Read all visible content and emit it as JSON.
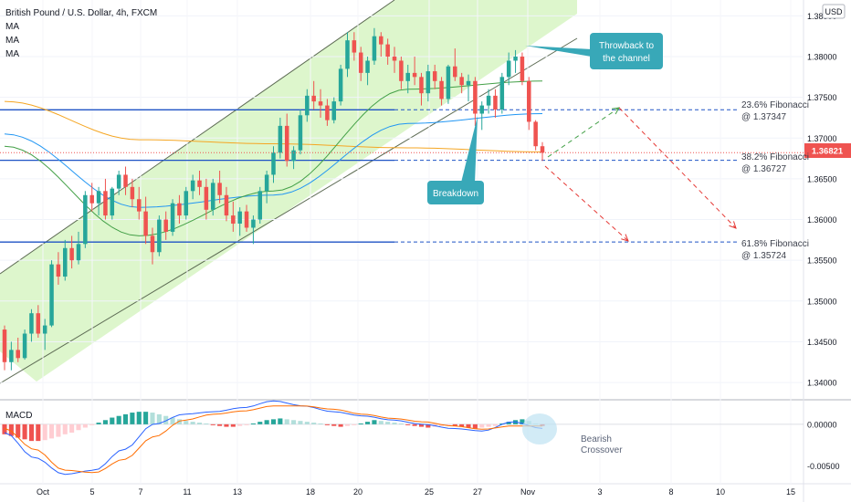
{
  "header": {
    "symbol_title": "British Pound / U.S. Dollar, 4h, FXCM",
    "indicators": [
      "MA",
      "MA",
      "MA"
    ],
    "currency_badge": "USD"
  },
  "price_axis": {
    "labels": [
      "1.38500",
      "1.38000",
      "1.37500",
      "1.37000",
      "1.36500",
      "1.36000",
      "1.35500",
      "1.35000",
      "1.34500",
      "1.34000"
    ],
    "values": [
      1.385,
      1.38,
      1.375,
      1.37,
      1.365,
      1.36,
      1.355,
      1.35,
      1.345,
      1.34
    ],
    "last_price": "1.36821",
    "last_price_color": "#ef5350"
  },
  "macd_axis": {
    "labels": [
      "0.00000",
      "-0.00500"
    ],
    "values": [
      0,
      -0.005
    ]
  },
  "time_axis": {
    "labels": [
      "Oct",
      "5",
      "7",
      "11",
      "13",
      "18",
      "20",
      "25",
      "27",
      "Nov",
      "3",
      "8",
      "10",
      "15"
    ]
  },
  "annotations": {
    "throwback": "Throwback to the channel",
    "breakdown": "Breakdown",
    "fib_236_name": "23.6% Fibonacci",
    "fib_236_value": "@ 1.37347",
    "fib_382_name": "38.2% Fibonacci",
    "fib_382_value": "@ 1.36727",
    "fib_618_name": "61.8% Fibonacci",
    "fib_618_value": "@ 1.35724",
    "bearish_crossover_line1": "Bearish",
    "bearish_crossover_line2": "Crossover"
  },
  "macd_panel": {
    "label": "MACD"
  },
  "colors": {
    "bull": "#26a69a",
    "bear": "#ef5350",
    "channel_fill": "#d9f5c7",
    "fib_line": "#1e53c5",
    "ma_orange": "#f5a623",
    "ma_blue": "#2196f3",
    "ma_green": "#43a047",
    "callout": "#38a8b8",
    "projection_green": "#43a047",
    "projection_red": "#e53935"
  },
  "chart_data": {
    "type": "candlestick",
    "title": "British Pound / U.S. Dollar, 4h, FXCM",
    "ylim": [
      1.339,
      1.3865
    ],
    "fibonacci_levels": [
      {
        "label": "23.6% Fibonacci",
        "value": 1.37347
      },
      {
        "label": "38.2% Fibonacci",
        "value": 1.36727
      },
      {
        "label": "61.8% Fibonacci",
        "value": 1.35724
      }
    ],
    "last_price": 1.36821,
    "ohlc": [
      [
        1.3465,
        1.347,
        1.3415,
        1.3425
      ],
      [
        1.3425,
        1.345,
        1.3415,
        1.344
      ],
      [
        1.344,
        1.3455,
        1.3425,
        1.343
      ],
      [
        1.343,
        1.3465,
        1.3428,
        1.346
      ],
      [
        1.346,
        1.349,
        1.345,
        1.3485
      ],
      [
        1.3485,
        1.3495,
        1.3455,
        1.346
      ],
      [
        1.346,
        1.3478,
        1.344,
        1.347
      ],
      [
        1.347,
        1.355,
        1.3468,
        1.3545
      ],
      [
        1.3545,
        1.356,
        1.352,
        1.353
      ],
      [
        1.353,
        1.3575,
        1.3525,
        1.3565
      ],
      [
        1.3565,
        1.358,
        1.354,
        1.355
      ],
      [
        1.355,
        1.3585,
        1.3545,
        1.357
      ],
      [
        1.357,
        1.3635,
        1.3565,
        1.363
      ],
      [
        1.363,
        1.3645,
        1.361,
        1.362
      ],
      [
        1.362,
        1.364,
        1.3605,
        1.3635
      ],
      [
        1.3635,
        1.365,
        1.36,
        1.3605
      ],
      [
        1.3605,
        1.364,
        1.36,
        1.3638
      ],
      [
        1.3638,
        1.366,
        1.363,
        1.3655
      ],
      [
        1.3655,
        1.3665,
        1.363,
        1.364
      ],
      [
        1.364,
        1.365,
        1.3615,
        1.3625
      ],
      [
        1.3625,
        1.364,
        1.36,
        1.361
      ],
      [
        1.361,
        1.3628,
        1.357,
        1.358
      ],
      [
        1.358,
        1.359,
        1.3545,
        1.356
      ],
      [
        1.356,
        1.3605,
        1.3555,
        1.36
      ],
      [
        1.36,
        1.361,
        1.3575,
        1.3585
      ],
      [
        1.3585,
        1.3625,
        1.358,
        1.362
      ],
      [
        1.362,
        1.363,
        1.3595,
        1.3605
      ],
      [
        1.3605,
        1.364,
        1.36,
        1.3635
      ],
      [
        1.3635,
        1.3655,
        1.3625,
        1.3648
      ],
      [
        1.3648,
        1.366,
        1.363,
        1.364
      ],
      [
        1.364,
        1.365,
        1.36,
        1.3612
      ],
      [
        1.3612,
        1.365,
        1.3605,
        1.3645
      ],
      [
        1.3645,
        1.366,
        1.362,
        1.363
      ],
      [
        1.363,
        1.364,
        1.3598,
        1.3605
      ],
      [
        1.3605,
        1.3622,
        1.3585,
        1.3595
      ],
      [
        1.3595,
        1.3615,
        1.358,
        1.361
      ],
      [
        1.361,
        1.3618,
        1.3585,
        1.359
      ],
      [
        1.359,
        1.3605,
        1.357,
        1.36
      ],
      [
        1.36,
        1.364,
        1.3595,
        1.3635
      ],
      [
        1.3635,
        1.366,
        1.362,
        1.3655
      ],
      [
        1.3655,
        1.369,
        1.3645,
        1.3682
      ],
      [
        1.3682,
        1.3725,
        1.3675,
        1.3715
      ],
      [
        1.3715,
        1.373,
        1.3665,
        1.3672
      ],
      [
        1.3672,
        1.369,
        1.3662,
        1.3685
      ],
      [
        1.3685,
        1.3735,
        1.368,
        1.3728
      ],
      [
        1.3728,
        1.376,
        1.372,
        1.3752
      ],
      [
        1.3752,
        1.377,
        1.3735,
        1.3745
      ],
      [
        1.3745,
        1.376,
        1.3725,
        1.374
      ],
      [
        1.374,
        1.3748,
        1.3715,
        1.3722
      ],
      [
        1.3722,
        1.375,
        1.3718,
        1.3745
      ],
      [
        1.3745,
        1.379,
        1.374,
        1.3785
      ],
      [
        1.3785,
        1.383,
        1.3775,
        1.382
      ],
      [
        1.382,
        1.383,
        1.3795,
        1.3805
      ],
      [
        1.3805,
        1.3812,
        1.377,
        1.378
      ],
      [
        1.378,
        1.38,
        1.3765,
        1.3795
      ],
      [
        1.3795,
        1.3835,
        1.379,
        1.3825
      ],
      [
        1.3825,
        1.383,
        1.38,
        1.3815
      ],
      [
        1.3815,
        1.3822,
        1.379,
        1.38
      ],
      [
        1.38,
        1.3812,
        1.378,
        1.3795
      ],
      [
        1.3795,
        1.38,
        1.376,
        1.377
      ],
      [
        1.377,
        1.379,
        1.3755,
        1.378
      ],
      [
        1.378,
        1.38,
        1.3765,
        1.3775
      ],
      [
        1.3775,
        1.378,
        1.374,
        1.3755
      ],
      [
        1.3755,
        1.379,
        1.3745,
        1.3782
      ],
      [
        1.3782,
        1.379,
        1.376,
        1.377
      ],
      [
        1.377,
        1.3775,
        1.374,
        1.3748
      ],
      [
        1.3748,
        1.379,
        1.3742,
        1.3788
      ],
      [
        1.3788,
        1.381,
        1.377,
        1.3775
      ],
      [
        1.3775,
        1.378,
        1.3755,
        1.3765
      ],
      [
        1.3765,
        1.3778,
        1.3745,
        1.377
      ],
      [
        1.377,
        1.3775,
        1.3715,
        1.373
      ],
      [
        1.373,
        1.3745,
        1.371,
        1.374
      ],
      [
        1.374,
        1.376,
        1.373,
        1.3752
      ],
      [
        1.3752,
        1.376,
        1.3725,
        1.3735
      ],
      [
        1.3735,
        1.378,
        1.373,
        1.3775
      ],
      [
        1.3775,
        1.3805,
        1.3765,
        1.3795
      ],
      [
        1.3795,
        1.3808,
        1.378,
        1.38
      ],
      [
        1.38,
        1.3805,
        1.3765,
        1.377
      ],
      [
        1.377,
        1.3775,
        1.371,
        1.372
      ],
      [
        1.372,
        1.3722,
        1.3685,
        1.369
      ],
      [
        1.369,
        1.3695,
        1.3672,
        1.3682
      ]
    ],
    "moving_averages": [
      {
        "color": "#f5a623",
        "values": [
          1.3745,
          1.3698,
          1.3693,
          1.3688,
          1.3683
        ]
      },
      {
        "color": "#2196f3",
        "values": [
          1.3705,
          1.3615,
          1.363,
          1.3718,
          1.373
        ]
      },
      {
        "color": "#43a047",
        "values": [
          1.369,
          1.358,
          1.3635,
          1.376,
          1.377
        ]
      }
    ],
    "macd": {
      "hist": [
        -0.0012,
        -0.0014,
        -0.0016,
        -0.0018,
        -0.002,
        -0.002,
        -0.0019,
        -0.0017,
        -0.0015,
        -0.0012,
        -0.001,
        -0.0007,
        -0.0004,
        -0.0001,
        0.0002,
        0.0005,
        0.0008,
        0.001,
        0.0012,
        0.0014,
        0.0015,
        0.0015,
        0.0014,
        0.0012,
        0.001,
        0.0008,
        0.0006,
        0.0004,
        0.0003,
        0.0002,
        0.0001,
        -0.0001,
        -0.0002,
        -0.0003,
        -0.0003,
        -0.0002,
        -0.0001,
        0.0001,
        0.0003,
        0.0005,
        0.0006,
        0.0007,
        0.0006,
        0.0005,
        0.0004,
        0.0003,
        0.0002,
        0.0001,
        -0.0001,
        -0.0002,
        -0.0003,
        -0.0002,
        -0.0001,
        0.0001,
        0.0003,
        0.0005,
        0.0004,
        0.0003,
        0.0002,
        0.0001,
        -0.0001,
        -0.0002,
        -0.0003,
        -0.0004,
        -0.0003,
        -0.0002,
        -0.0001,
        -0.0002,
        -0.0003,
        -0.0004,
        -0.0005,
        -0.0004,
        -0.0003,
        -0.0002,
        0.0001,
        0.0003,
        0.0005,
        0.0006,
        0.0004,
        0.0001,
        -0.0002
      ],
      "macd_line": [
        -0.001,
        -0.004,
        -0.006,
        -0.0055,
        -0.003,
        0.0,
        0.0012,
        0.0015,
        0.002,
        0.0028,
        0.0022,
        0.0015,
        0.001,
        0.0005,
        0.0,
        -0.0005,
        -0.0008,
        0.0003,
        -0.0005
      ],
      "signal_line": [
        -0.0005,
        -0.003,
        -0.0055,
        -0.0058,
        -0.0042,
        -0.0015,
        0.0005,
        0.0012,
        0.0016,
        0.0022,
        0.0022,
        0.0018,
        0.0012,
        0.0007,
        0.0003,
        -0.0002,
        -0.0006,
        -0.0002,
        -0.0002
      ],
      "ylim": [
        -0.0068,
        0.0025
      ]
    }
  }
}
